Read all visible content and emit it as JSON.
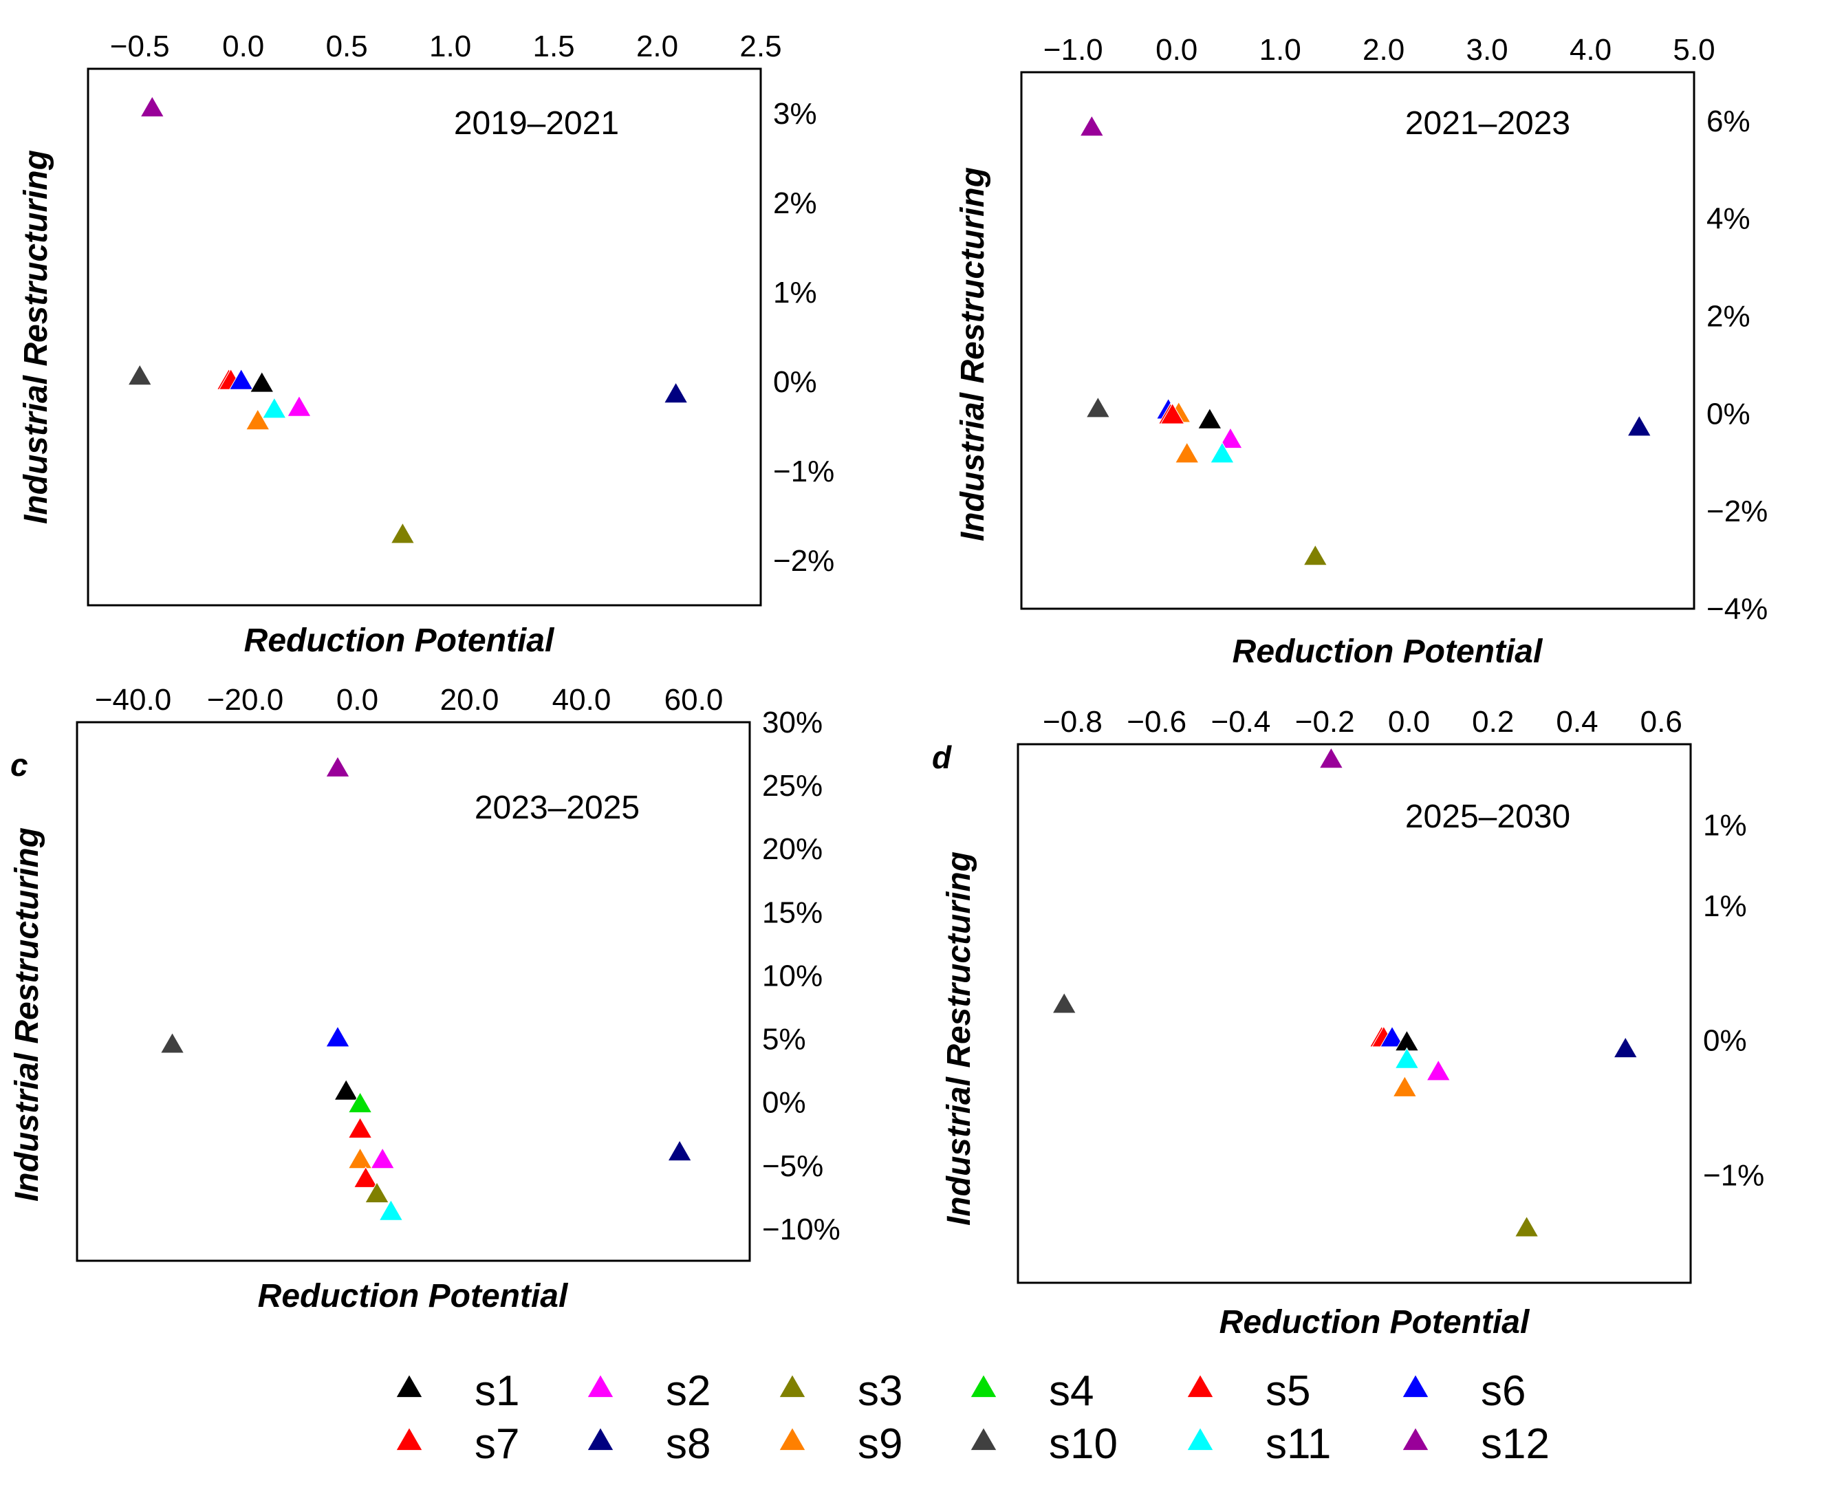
{
  "legend": [
    {
      "name": "s1",
      "color": "#000000"
    },
    {
      "name": "s2",
      "color": "#ff00ff"
    },
    {
      "name": "s3",
      "color": "#808000"
    },
    {
      "name": "s4",
      "color": "#00e000"
    },
    {
      "name": "s5",
      "color": "#ff0000"
    },
    {
      "name": "s6",
      "color": "#0000ff"
    },
    {
      "name": "s7",
      "color": "#ff0000"
    },
    {
      "name": "s8",
      "color": "#000080"
    },
    {
      "name": "s9",
      "color": "#ff8000"
    },
    {
      "name": "s10",
      "color": "#404040"
    },
    {
      "name": "s11",
      "color": "#00ffff"
    },
    {
      "name": "s12",
      "color": "#990099"
    }
  ],
  "chart_data": [
    {
      "type": "scatter",
      "title": "2019–2021",
      "panel_letter": "",
      "xlabel": "Reduction Potential",
      "ylabel": "Industrial Restructuring",
      "x_position": "top",
      "y_position": "right",
      "xlim": [
        -0.75,
        2.5
      ],
      "ylim": [
        -2.5,
        3.5
      ],
      "xticks": [
        -0.5,
        0.0,
        0.5,
        1.0,
        1.5,
        2.0,
        2.5
      ],
      "xtick_labels": [
        "−0.5",
        "0.0",
        "0.5",
        "1.0",
        "1.5",
        "2.0",
        "2.5"
      ],
      "yticks": [
        3,
        2,
        1,
        0,
        -1,
        -2
      ],
      "ytick_labels": [
        "3%",
        "2%",
        "1%",
        "0%",
        "−1%",
        "−2%"
      ],
      "points": [
        {
          "series": "s12",
          "x": -0.44,
          "y": 3.05
        },
        {
          "series": "s10",
          "x": -0.5,
          "y": 0.05
        },
        {
          "series": "s5",
          "x": -0.07,
          "y": 0.0
        },
        {
          "series": "s7",
          "x": -0.06,
          "y": 0.0
        },
        {
          "series": "s6",
          "x": -0.01,
          "y": 0.0
        },
        {
          "series": "s1",
          "x": 0.09,
          "y": -0.03
        },
        {
          "series": "s11",
          "x": 0.15,
          "y": -0.32
        },
        {
          "series": "s2",
          "x": 0.27,
          "y": -0.3
        },
        {
          "series": "s9",
          "x": 0.07,
          "y": -0.45
        },
        {
          "series": "s8",
          "x": 2.09,
          "y": -0.15
        },
        {
          "series": "s3",
          "x": 0.77,
          "y": -1.72
        }
      ]
    },
    {
      "type": "scatter",
      "title": "2021–2023",
      "panel_letter": "",
      "xlabel": "Reduction Potential",
      "ylabel": "Industrial Restructuring",
      "x_position": "top",
      "y_position": "right",
      "xlim": [
        -1.5,
        5.0
      ],
      "ylim": [
        -4,
        7
      ],
      "xticks": [
        -1.0,
        0.0,
        1.0,
        2.0,
        3.0,
        4.0,
        5.0
      ],
      "xtick_labels": [
        "−1.0",
        "0.0",
        "1.0",
        "2.0",
        "3.0",
        "4.0",
        "5.0"
      ],
      "yticks": [
        6,
        4,
        2,
        0,
        -2,
        -4
      ],
      "ytick_labels": [
        "6%",
        "4%",
        "2%",
        "0%",
        "−2%",
        "−4%"
      ],
      "points": [
        {
          "series": "s12",
          "x": -0.82,
          "y": 5.85
        },
        {
          "series": "s10",
          "x": -0.76,
          "y": 0.08
        },
        {
          "series": "s6",
          "x": -0.08,
          "y": 0.05
        },
        {
          "series": "s9",
          "x": 0.02,
          "y": -0.02
        },
        {
          "series": "s5",
          "x": -0.06,
          "y": -0.05
        },
        {
          "series": "s7",
          "x": -0.04,
          "y": -0.05
        },
        {
          "series": "s1",
          "x": 0.32,
          "y": -0.15
        },
        {
          "series": "s2",
          "x": 0.52,
          "y": -0.55
        },
        {
          "series": "s9",
          "x": 0.1,
          "y": -0.85
        },
        {
          "series": "s11",
          "x": 0.44,
          "y": -0.85
        },
        {
          "series": "s8",
          "x": 4.47,
          "y": -0.3
        },
        {
          "series": "s3",
          "x": 1.34,
          "y": -2.95
        }
      ]
    },
    {
      "type": "scatter",
      "title": "2023–2025",
      "panel_letter": "c",
      "xlabel": "Reduction Potential",
      "ylabel": "Industrial Restructuring",
      "x_position": "top",
      "y_position": "right",
      "xlim": [
        -50,
        70
      ],
      "ylim": [
        -12.5,
        30
      ],
      "xticks": [
        -40,
        -20,
        0,
        20,
        40,
        60
      ],
      "xtick_labels": [
        "−40.0",
        "−20.0",
        "0.0",
        "20.0",
        "40.0",
        "60.0"
      ],
      "yticks": [
        30,
        25,
        20,
        15,
        10,
        5,
        0,
        -5,
        -10
      ],
      "ytick_labels": [
        "30%",
        "25%",
        "20%",
        "15%",
        "10%",
        "5%",
        "0%",
        "−5%",
        "−10%"
      ],
      "points": [
        {
          "series": "s12",
          "x": -3.5,
          "y": 26.3
        },
        {
          "series": "s10",
          "x": -33.0,
          "y": 4.5
        },
        {
          "series": "s6",
          "x": -3.5,
          "y": 5.0
        },
        {
          "series": "s1",
          "x": -2.0,
          "y": 0.8
        },
        {
          "series": "s4",
          "x": 0.5,
          "y": -0.2
        },
        {
          "series": "s5",
          "x": 0.5,
          "y": -2.2
        },
        {
          "series": "s2",
          "x": 4.5,
          "y": -4.6
        },
        {
          "series": "s9",
          "x": 0.5,
          "y": -4.6
        },
        {
          "series": "s7",
          "x": 1.5,
          "y": -6.1
        },
        {
          "series": "s3",
          "x": 3.5,
          "y": -7.3
        },
        {
          "series": "s11",
          "x": 6.0,
          "y": -8.7
        },
        {
          "series": "s8",
          "x": 57.5,
          "y": -4.0
        }
      ]
    },
    {
      "type": "scatter",
      "title": "2025–2030",
      "panel_letter": "d",
      "xlabel": "Reduction Potential",
      "ylabel": "Industrial Restructuring",
      "x_position": "top",
      "y_position": "right",
      "xlim": [
        -0.93,
        0.67
      ],
      "ylim": [
        -0.9,
        1.1
      ],
      "xticks": [
        -0.8,
        -0.6,
        -0.4,
        -0.2,
        0.0,
        0.2,
        0.4,
        0.6
      ],
      "xtick_labels": [
        "−0.8",
        "−0.6",
        "−0.4",
        "−0.2",
        "0.0",
        "0.2",
        "0.4",
        "0.6"
      ],
      "yticks": [
        0.8,
        0.5,
        0.0,
        -0.5
      ],
      "ytick_labels": [
        "1%",
        "1%",
        "0%",
        "−1%"
      ],
      "points": [
        {
          "series": "s12",
          "x": -0.185,
          "y": 1.04
        },
        {
          "series": "s10",
          "x": -0.82,
          "y": 0.13
        },
        {
          "series": "s5",
          "x": -0.065,
          "y": 0.005
        },
        {
          "series": "s7",
          "x": -0.06,
          "y": 0.005
        },
        {
          "series": "s6",
          "x": -0.04,
          "y": 0.005
        },
        {
          "series": "s1",
          "x": -0.005,
          "y": -0.01
        },
        {
          "series": "s11",
          "x": -0.005,
          "y": -0.075
        },
        {
          "series": "s2",
          "x": 0.07,
          "y": -0.12
        },
        {
          "series": "s9",
          "x": -0.01,
          "y": -0.18
        },
        {
          "series": "s8",
          "x": 0.515,
          "y": -0.035
        },
        {
          "series": "s3",
          "x": 0.28,
          "y": -0.7
        }
      ]
    }
  ]
}
